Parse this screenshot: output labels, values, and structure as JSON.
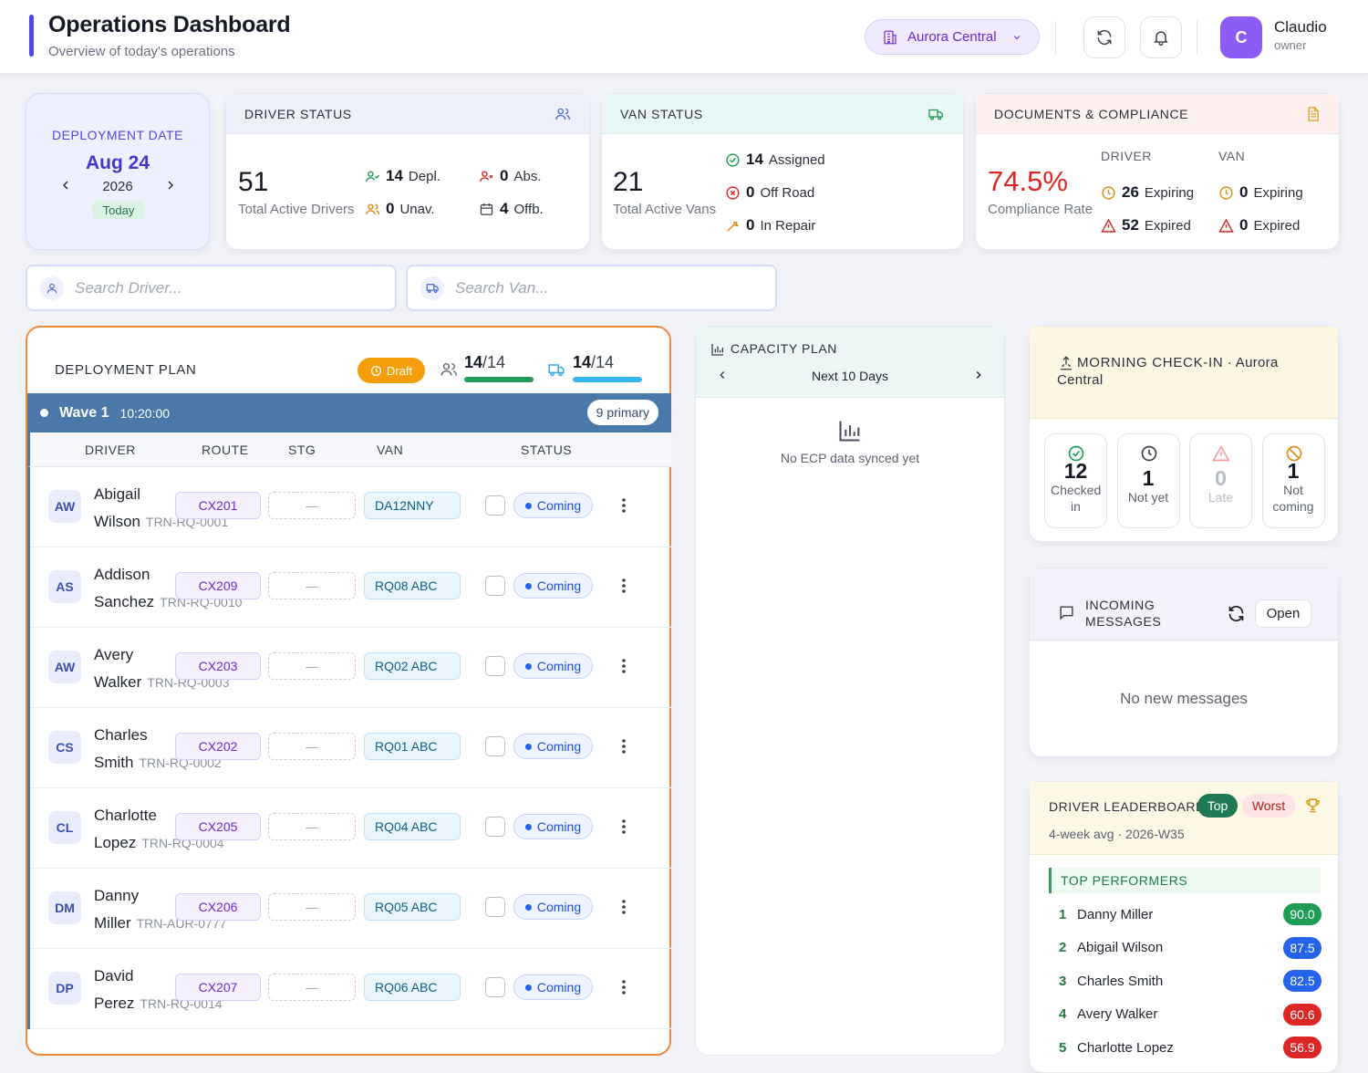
{
  "header": {
    "title": "Operations Dashboard",
    "subtitle": "Overview of today's operations",
    "location": "Aurora Central",
    "user": {
      "initial": "C",
      "name": "Claudio",
      "role": "owner"
    }
  },
  "date_card": {
    "label": "DEPLOYMENT DATE",
    "date": "Aug 24",
    "year": "2026",
    "badge": "Today"
  },
  "driver_status": {
    "title": "DRIVER STATUS",
    "total": "51",
    "total_label": "Total Active Drivers",
    "deployed": "14",
    "deployed_label": "Depl.",
    "absent": "0",
    "absent_label": "Abs.",
    "unavailable": "0",
    "unavailable_label": "Unav.",
    "offboarded": "4",
    "offboarded_label": "Offb."
  },
  "van_status": {
    "title": "VAN STATUS",
    "total": "21",
    "total_label": "Total Active Vans",
    "assigned": "14",
    "assigned_label": "Assigned",
    "off_road": "0",
    "off_road_label": "Off Road",
    "in_repair": "0",
    "in_repair_label": "In Repair"
  },
  "compliance": {
    "title": "DOCUMENTS & COMPLIANCE",
    "rate": "74.5%",
    "rate_label": "Compliance Rate",
    "driver_col": "DRIVER",
    "van_col": "VAN",
    "driver_expiring": "26",
    "driver_expired": "52",
    "van_expiring": "0",
    "van_expired": "0",
    "expiring_label": "Expiring",
    "expired_label": "Expired"
  },
  "search": {
    "driver_placeholder": "Search Driver...",
    "van_placeholder": "Search Van..."
  },
  "plan": {
    "title": "DEPLOYMENT PLAN",
    "badge": "Draft",
    "drivers_done": "14",
    "drivers_total": "/14",
    "vans_done": "14",
    "vans_total": "/14",
    "drivers_progress": 1.0,
    "vans_progress": 1.0,
    "wave": {
      "name": "Wave 1",
      "time": "10:20:00",
      "primary": "9 primary"
    },
    "columns": {
      "driver": "DRIVER",
      "route": "ROUTE",
      "stg": "STG",
      "van": "VAN",
      "status": "STATUS"
    },
    "rows": [
      {
        "initials": "AW",
        "first": "Abigail",
        "last": "Wilson",
        "id": "TRN-RQ-0001",
        "route": "CX201",
        "stg": "—",
        "van": "DA12NNY",
        "status": "Coming"
      },
      {
        "initials": "AS",
        "first": "Addison",
        "last": "Sanchez",
        "id": "TRN-RQ-0010",
        "route": "CX209",
        "stg": "—",
        "van": "RQ08 ABC",
        "status": "Coming"
      },
      {
        "initials": "AW",
        "first": "Avery",
        "last": "Walker",
        "id": "TRN-RQ-0003",
        "route": "CX203",
        "stg": "—",
        "van": "RQ02 ABC",
        "status": "Coming"
      },
      {
        "initials": "CS",
        "first": "Charles",
        "last": "Smith",
        "id": "TRN-RQ-0002",
        "route": "CX202",
        "stg": "—",
        "van": "RQ01 ABC",
        "status": "Coming"
      },
      {
        "initials": "CL",
        "first": "Charlotte",
        "last": "Lopez",
        "id": "TRN-RQ-0004",
        "route": "CX205",
        "stg": "—",
        "van": "RQ04 ABC",
        "status": "Coming"
      },
      {
        "initials": "DM",
        "first": "Danny",
        "last": "Miller",
        "id": "TRN-AUR-0777",
        "route": "CX206",
        "stg": "—",
        "van": "RQ05 ABC",
        "status": "Coming"
      },
      {
        "initials": "DP",
        "first": "David",
        "last": "Perez",
        "id": "TRN-RQ-0014",
        "route": "CX207",
        "stg": "—",
        "van": "RQ06 ABC",
        "status": "Coming"
      }
    ]
  },
  "capacity": {
    "title": "CAPACITY PLAN",
    "range": "Next 10 Days",
    "empty": "No ECP data synced yet"
  },
  "checkin": {
    "title": "MORNING CHECK-IN",
    "location": " · Aurora Central",
    "tiles": [
      {
        "num": "12",
        "label": "Checked in"
      },
      {
        "num": "1",
        "label": "Not yet"
      },
      {
        "num": "0",
        "label": "Late"
      },
      {
        "num": "1",
        "label": "Not coming"
      }
    ]
  },
  "messages": {
    "title": "INCOMING MESSAGES",
    "open": "Open",
    "empty": "No new messages"
  },
  "leaderboard": {
    "title": "DRIVER LEADERBOARD",
    "tab_top": "Top",
    "tab_worst": "Worst",
    "subtitle": "4-week avg · 2026-W35",
    "section": "TOP PERFORMERS",
    "rows": [
      {
        "rank": "1",
        "name": "Danny Miller",
        "score": "90.0",
        "color": "#1f9d55"
      },
      {
        "rank": "2",
        "name": "Abigail Wilson",
        "score": "87.5",
        "color": "#2563eb"
      },
      {
        "rank": "3",
        "name": "Charles Smith",
        "score": "82.5",
        "color": "#2563eb"
      },
      {
        "rank": "4",
        "name": "Avery Walker",
        "score": "60.6",
        "color": "#dc2626"
      },
      {
        "rank": "5",
        "name": "Charlotte Lopez",
        "score": "56.9",
        "color": "#dc2626"
      }
    ]
  },
  "colors": {
    "accent": "#4f46e5",
    "plan_border": "#f08a3a",
    "wave": "#4a78a8",
    "draft": "#f59e0b"
  }
}
